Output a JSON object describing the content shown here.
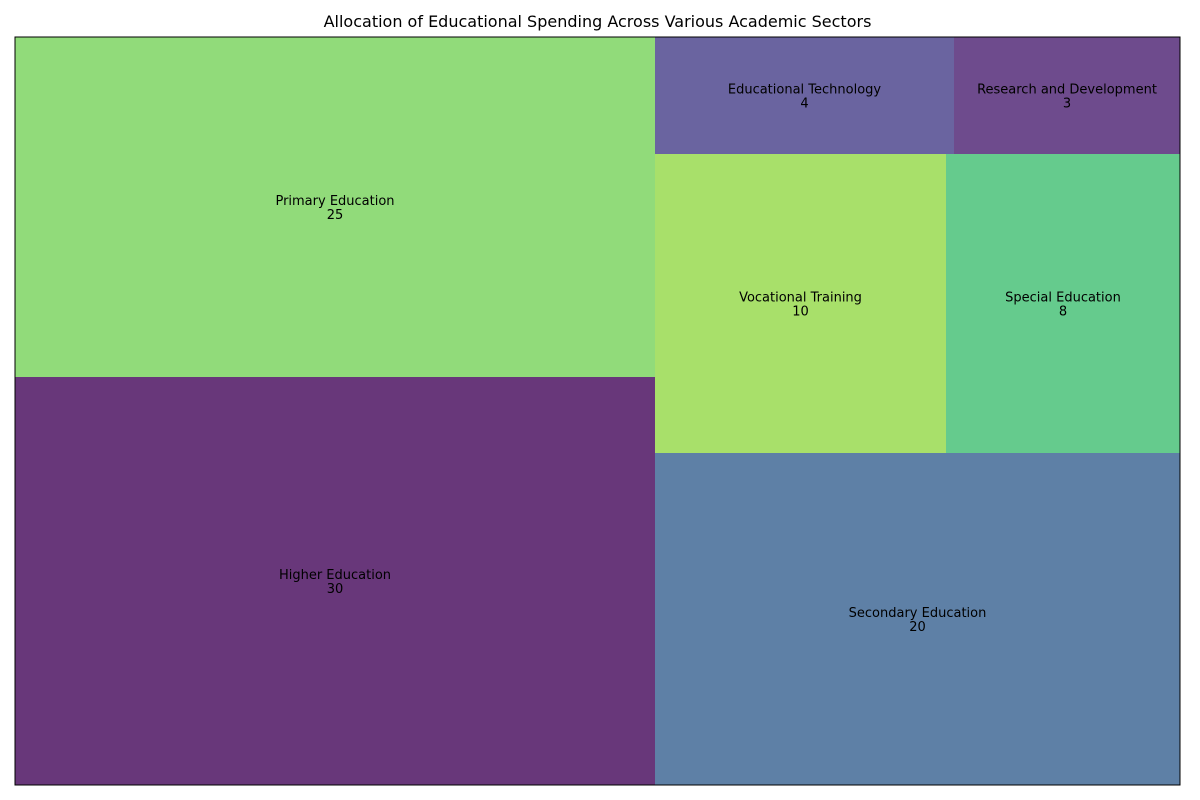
{
  "chart_data": {
    "type": "treemap",
    "title": "Allocation of Educational Spending Across Various Academic Sectors",
    "categories": [
      "Higher Education",
      "Primary Education",
      "Secondary Education",
      "Vocational Training",
      "Special Education",
      "Educational Technology",
      "Research and Development"
    ],
    "values": [
      30,
      25,
      20,
      10,
      8,
      4,
      3
    ],
    "colors": [
      "#68377a",
      "#91db7a",
      "#5e80a6",
      "#a8e06a",
      "#65cb8d",
      "#6a64a0",
      "#6e4b8d"
    ],
    "grid": false,
    "legend": "none"
  }
}
